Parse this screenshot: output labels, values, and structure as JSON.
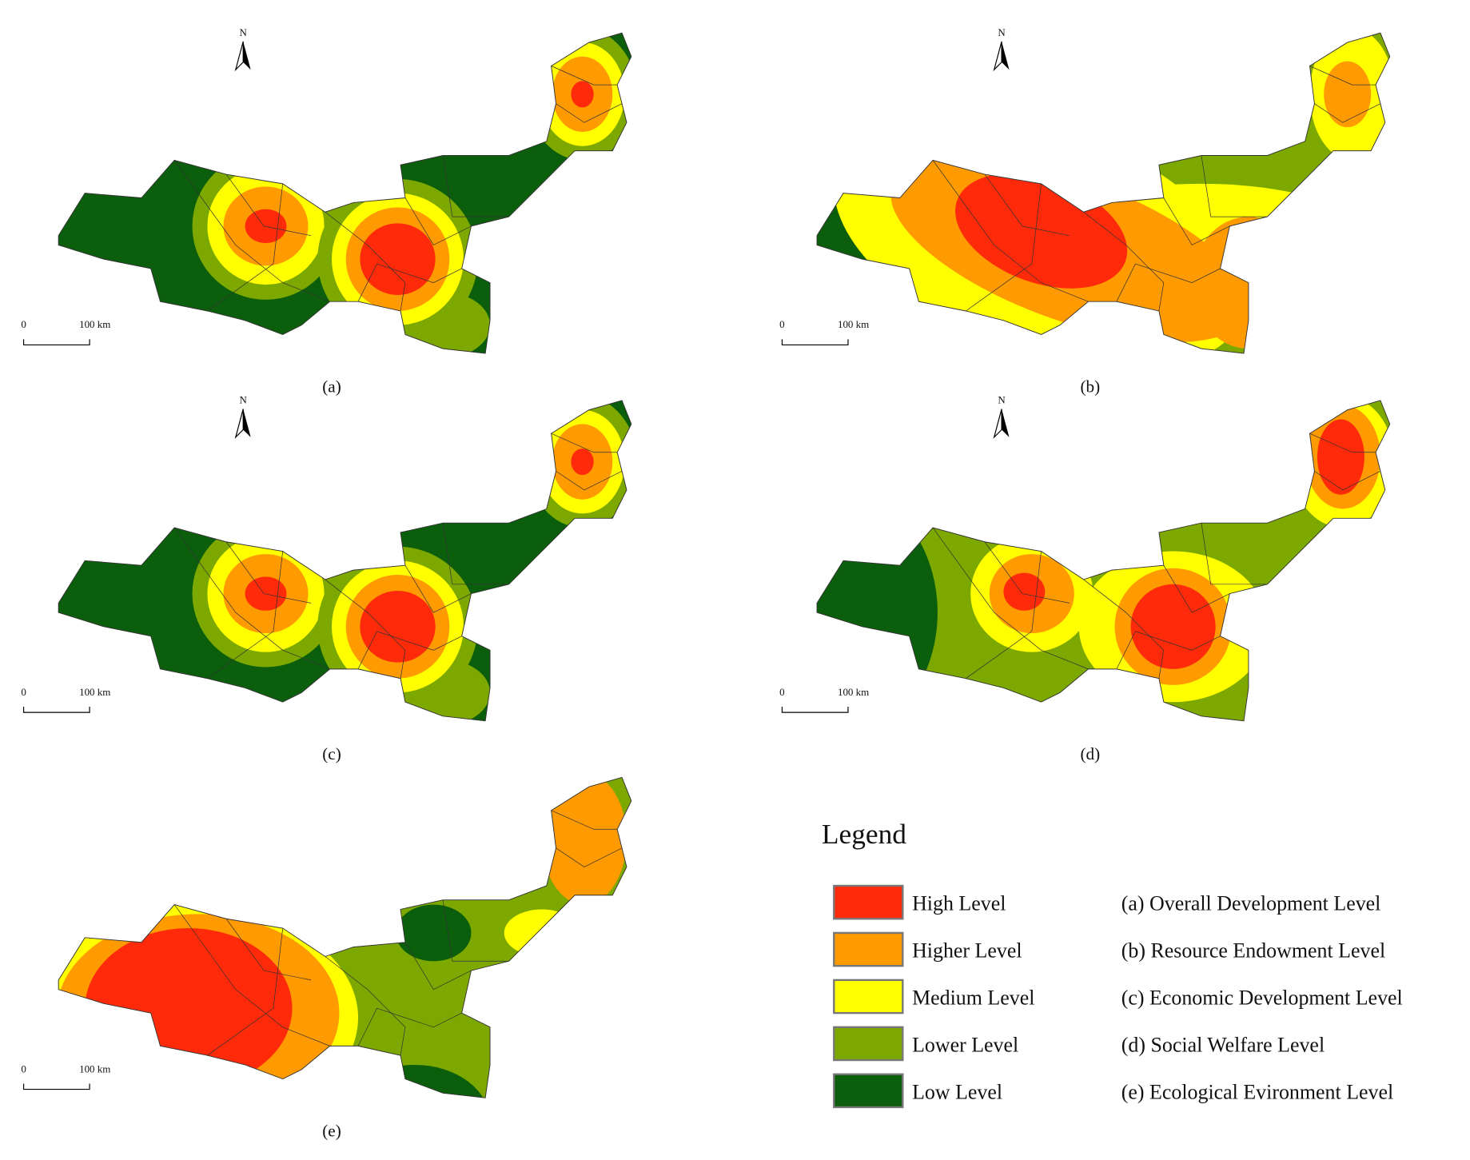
{
  "panels": [
    {
      "label": "(a)",
      "north_arrow": "N",
      "scale_start": "0",
      "scale_end": "100 km"
    },
    {
      "label": "(b)",
      "north_arrow": "N",
      "scale_start": "0",
      "scale_end": "100 km"
    },
    {
      "label": "(c)",
      "north_arrow": "N",
      "scale_start": "0",
      "scale_end": "100 km"
    },
    {
      "label": "(d)",
      "north_arrow": "N",
      "scale_start": "0",
      "scale_end": "100 km"
    },
    {
      "label": "(e)",
      "scale_start": "0",
      "scale_end": "100 km"
    }
  ],
  "legend": {
    "title": "Legend",
    "levels": [
      {
        "name": "High Level",
        "color": "#ff2a0a"
      },
      {
        "name": "Higher Level",
        "color": "#ff9a00"
      },
      {
        "name": "Medium Level",
        "color": "#ffff00"
      },
      {
        "name": "Lower Level",
        "color": "#7ca800"
      },
      {
        "name": "Low Level",
        "color": "#0b5e0b"
      }
    ],
    "descriptions": [
      "(a) Overall Development Level",
      "(b) Resource Endowment Level",
      "(c) Economic Development Level",
      "(d) Social Welfare Level",
      "(e) Ecological Evironment Level"
    ]
  }
}
